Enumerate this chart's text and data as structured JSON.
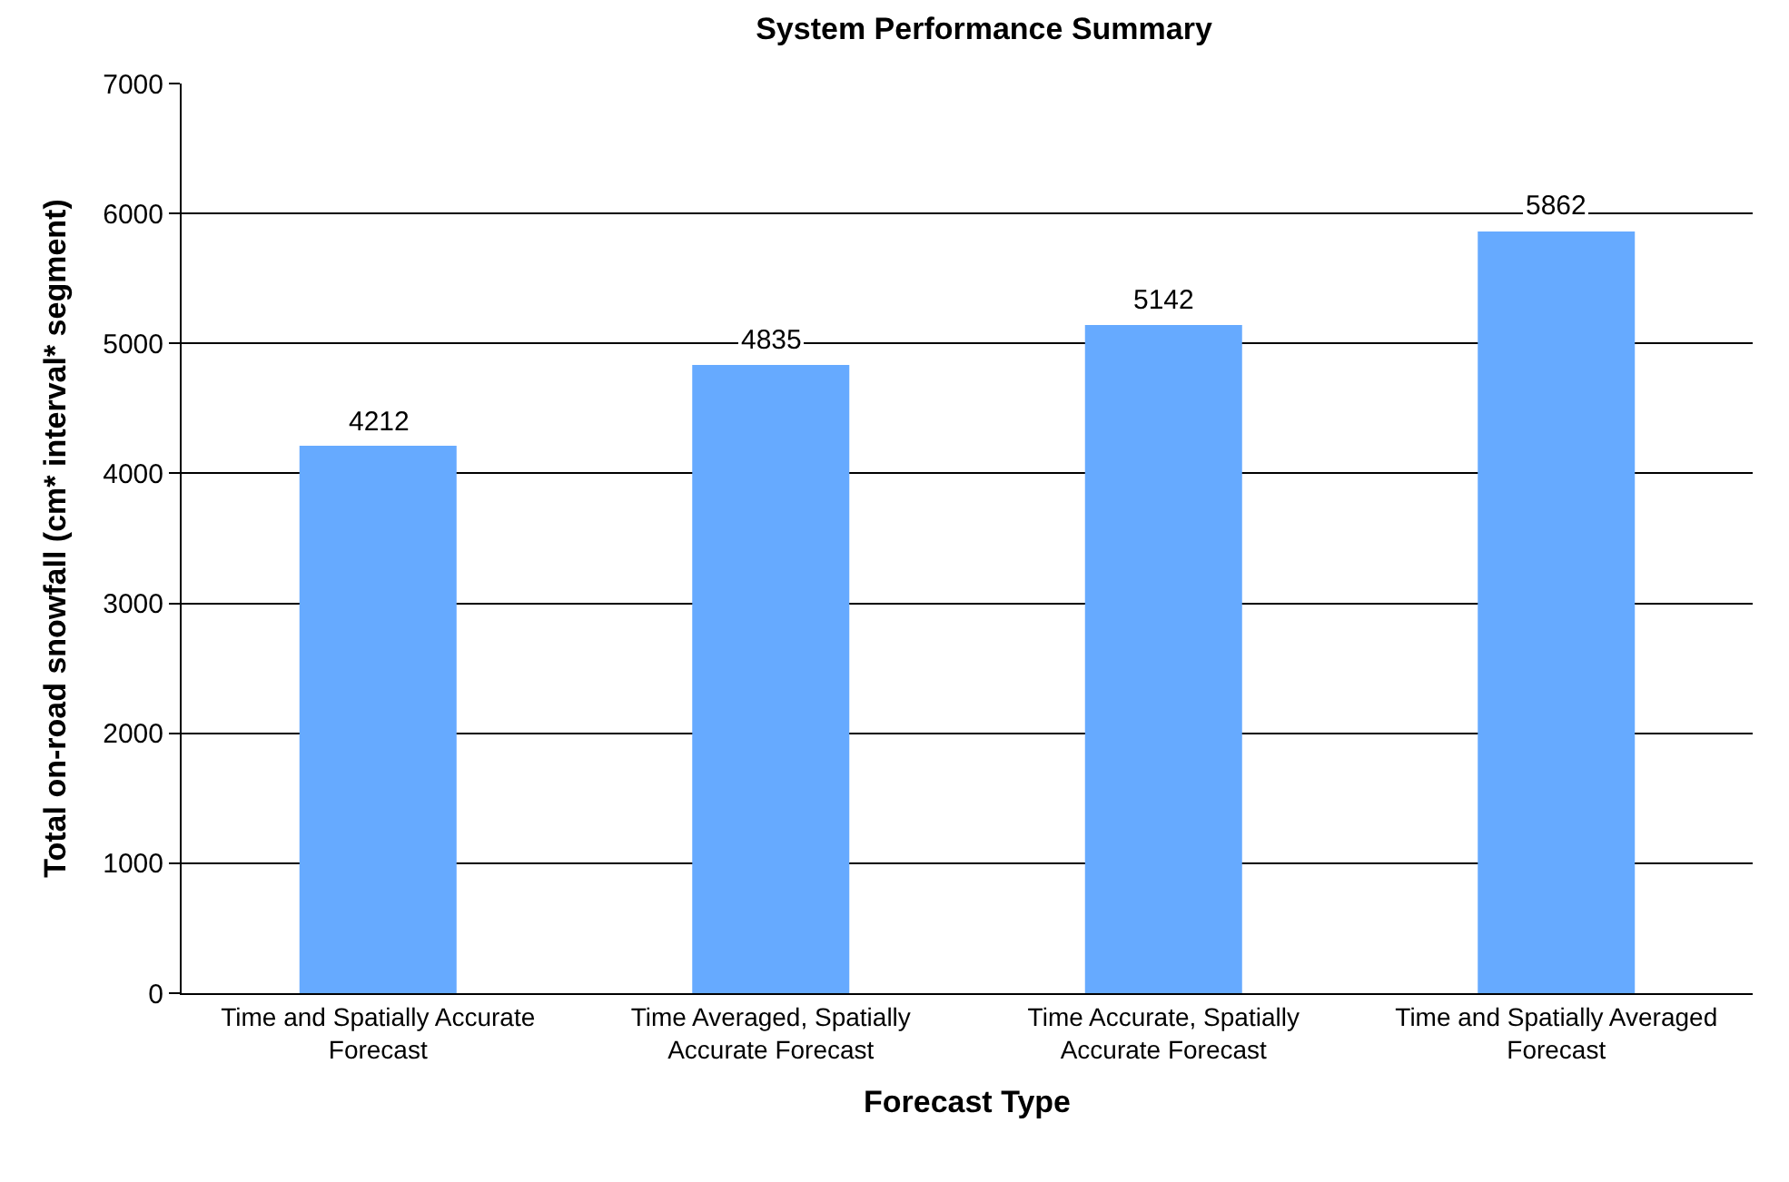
{
  "chart_data": {
    "type": "bar",
    "title": "System Performance Summary",
    "xlabel": "Forecast Type",
    "ylabel": "Total on-road snowfall (cm* interval* segment)",
    "categories": [
      "Time and Spatially Accurate Forecast",
      "Time Averaged, Spatially Accurate Forecast",
      "Time Accurate, Spatially Accurate Forecast",
      "Time and Spatially Averaged Forecast"
    ],
    "values": [
      4212,
      4835,
      5142,
      5862
    ],
    "color": "#66aaff",
    "ylim": [
      0,
      7000
    ],
    "yticks": [
      0,
      1000,
      2000,
      3000,
      4000,
      5000,
      6000,
      7000
    ],
    "grid": "y",
    "data_labels": true,
    "legend": false
  }
}
